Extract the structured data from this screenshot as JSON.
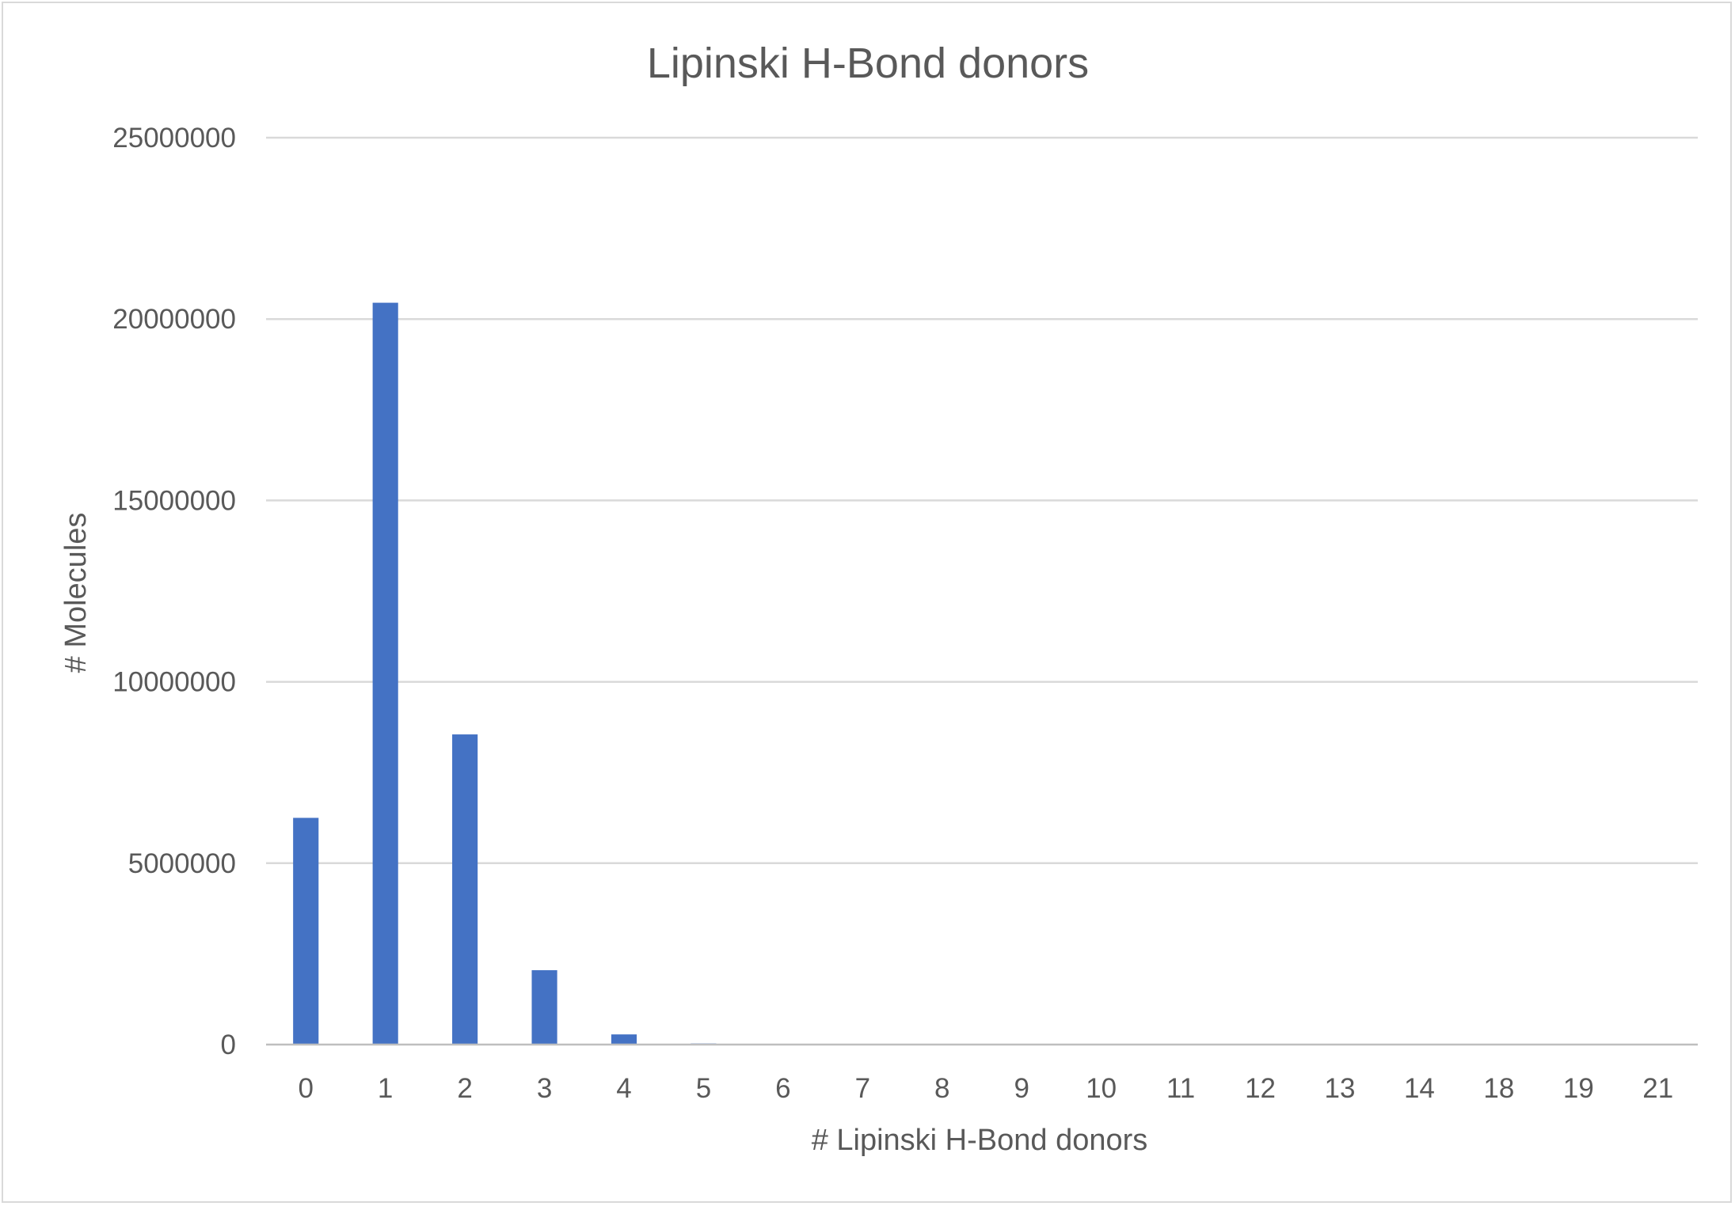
{
  "chart_data": {
    "type": "bar",
    "title": "Lipinski H-Bond donors",
    "xlabel": "# Lipinski H-Bond donors",
    "ylabel": "# Molecules",
    "categories": [
      "0",
      "1",
      "2",
      "3",
      "4",
      "5",
      "6",
      "7",
      "8",
      "9",
      "10",
      "11",
      "12",
      "13",
      "14",
      "18",
      "19",
      "21"
    ],
    "values": [
      6250000,
      20450000,
      8550000,
      2050000,
      280000,
      30000,
      5000,
      1000,
      200,
      50,
      20,
      10,
      5,
      3,
      2,
      1,
      1,
      1
    ],
    "ylim": [
      0,
      25000000
    ],
    "yticks": [
      0,
      5000000,
      10000000,
      15000000,
      20000000,
      25000000
    ],
    "ytick_labels": [
      "0",
      "5000000",
      "10000000",
      "15000000",
      "20000000",
      "25000000"
    ],
    "grid": true,
    "legend": "none",
    "bar_color": "#4472c4"
  }
}
